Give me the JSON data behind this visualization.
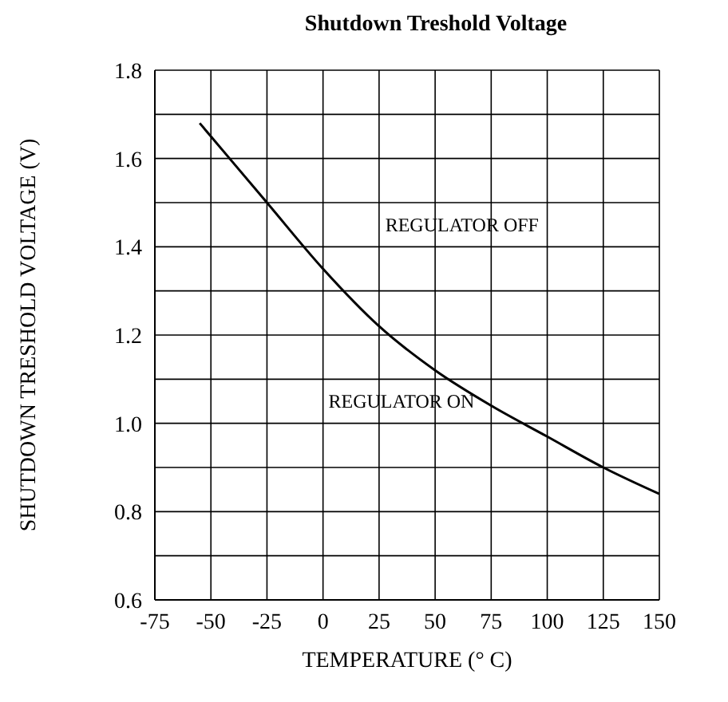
{
  "chart_data": {
    "type": "line",
    "title": "Shutdown Treshold Voltage",
    "xlabel": "TEMPERATURE (° C)",
    "ylabel": "SHUTDOWN TRESHOLD VOLTAGE (V)",
    "x": [
      -55,
      -50,
      -25,
      0,
      25,
      50,
      75,
      100,
      125,
      150
    ],
    "series": [
      {
        "color": "#000000",
        "values": [
          1.68,
          1.65,
          1.5,
          1.35,
          1.22,
          1.12,
          1.04,
          0.97,
          0.9,
          0.84
        ]
      }
    ],
    "xlim": [
      -75,
      150
    ],
    "xticks": [
      -75,
      -50,
      -25,
      0,
      25,
      50,
      75,
      100,
      125,
      150
    ],
    "ylim": [
      0.6,
      1.8
    ],
    "yticks": [
      0.6,
      {
        "value": 0.7,
        "label": null
      },
      0.8,
      {
        "value": 0.9,
        "label": null
      },
      {
        "value": 1,
        "label": "1.0"
      },
      {
        "value": 1.1,
        "label": null
      },
      1.2,
      {
        "value": 1.3,
        "label": null
      },
      1.4,
      {
        "value": 1.5,
        "label": null
      },
      1.6,
      {
        "value": 1.7,
        "label": null
      },
      1.8
    ],
    "grid": true,
    "marker": "none",
    "line_style": "solid",
    "legend": false,
    "annotations": [
      "REGULATOR OFF",
      "REGULATOR ON"
    ]
  }
}
